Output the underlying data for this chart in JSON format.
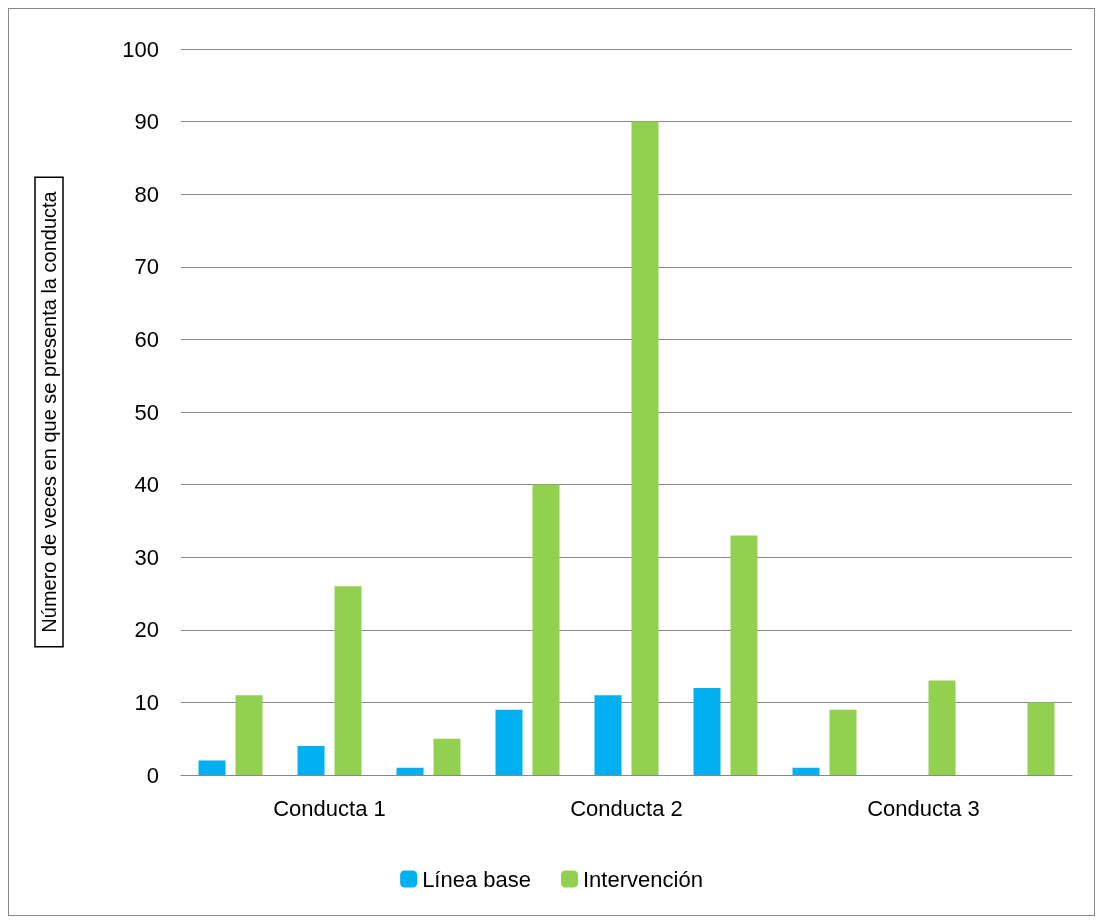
{
  "chart_data": {
    "type": "bar",
    "ylabel": "Número de veces en que se presenta la conducta",
    "categories": [
      null,
      "Conducta 1",
      null,
      null,
      "Conducta 2",
      null,
      null,
      "Conducta 3",
      null
    ],
    "series": [
      {
        "name": "Línea base",
        "color": "#00b0f0",
        "values": [
          2,
          4,
          1,
          9,
          11,
          12,
          1,
          null,
          null
        ]
      },
      {
        "name": "Intervención",
        "color": "#92d050",
        "values": [
          11,
          26,
          5,
          40,
          90,
          33,
          9,
          13,
          10
        ]
      }
    ],
    "ylim": [
      0,
      100
    ],
    "yticks": [
      0,
      10,
      20,
      30,
      40,
      50,
      60,
      70,
      80,
      90,
      100
    ],
    "grid": "y",
    "legend": "bottom"
  }
}
